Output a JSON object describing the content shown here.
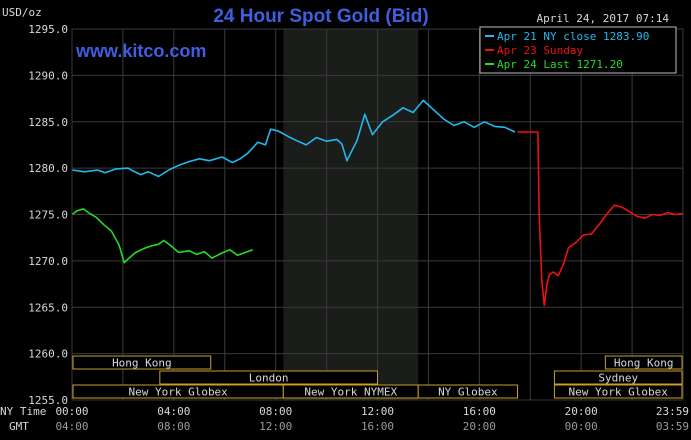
{
  "title": "24 Hour Spot Gold (Bid)",
  "units": "USD/oz",
  "timestamp": "April 24, 2017 07:14",
  "watermark": "www.kitco.com",
  "colors": {
    "background": "#000000",
    "plot": "#000000",
    "shade": "#1a1d1a",
    "grid": "#3a3a3a",
    "axis_text": "#d8d8d8",
    "title": "#3f5fe0",
    "blue": "#22b8ee",
    "red": "#ee1111",
    "green": "#22dd22",
    "session_border": "#c8a028",
    "session_text": "#d8d8d8"
  },
  "legend": [
    {
      "text": "Apr 21 NY close 1283.90",
      "color": "blue"
    },
    {
      "text": "Apr 23 Sunday",
      "color": "red"
    },
    {
      "text": "Apr 24 Last 1271.20",
      "color": "green"
    }
  ],
  "time_labels": {
    "ny_time_label": "NY Time",
    "gmt_label": "GMT",
    "ny_times": [
      "00:00",
      "04:00",
      "08:00",
      "12:00",
      "16:00",
      "20:00",
      "23:59"
    ],
    "gmt_times": [
      "04:00",
      "08:00",
      "12:00",
      "16:00",
      "20:00",
      "00:00",
      "03:59"
    ]
  },
  "sessions": {
    "row1": [
      {
        "label": "Hong Kong",
        "start": 0,
        "end": 5.45
      },
      {
        "label": "Hong Kong",
        "start": 20.95,
        "end": 23.98
      }
    ],
    "row2": [
      {
        "label": "London",
        "start": 3.45,
        "end": 12.0
      },
      {
        "label": "Sydney",
        "start": 18.95,
        "end": 23.98
      }
    ],
    "row3": [
      {
        "label": "New York Globex",
        "start": 0,
        "end": 8.3
      },
      {
        "label": "New York NYMEX",
        "start": 8.3,
        "end": 13.6
      },
      {
        "label": "NY Globex",
        "start": 13.6,
        "end": 17.5
      },
      {
        "label": "New York Globex",
        "start": 18.95,
        "end": 23.98
      }
    ]
  },
  "chart_data": {
    "type": "line",
    "title": "24 Hour Spot Gold (Bid)",
    "ylabel": "USD/oz",
    "xlabel": "NY Time",
    "xlim": [
      0,
      24
    ],
    "ylim": [
      1255,
      1295
    ],
    "y_ticks": [
      "1295.0",
      "1290.0",
      "1285.0",
      "1280.0",
      "1275.0",
      "1270.0",
      "1265.0",
      "1260.0",
      "1255.0"
    ],
    "grid": true,
    "legend_position": "top-right",
    "shaded_range": [
      8.3,
      13.6
    ],
    "series": [
      {
        "name": "Apr 21 NY close 1283.90",
        "color": "blue",
        "x": [
          0,
          0.5,
          1,
          1.3,
          1.7,
          2.2,
          2.4,
          2.7,
          3.0,
          3.4,
          3.8,
          4.2,
          4.6,
          5.0,
          5.4,
          5.9,
          6.3,
          6.6,
          6.9,
          7.3,
          7.6,
          7.8,
          8.1,
          8.5,
          8.8,
          9.2,
          9.6,
          10.0,
          10.4,
          10.6,
          10.8,
          11.0,
          11.2,
          11.5,
          11.8,
          12.2,
          12.6,
          13.0,
          13.4,
          13.8,
          14.2,
          14.6,
          15.0,
          15.4,
          15.8,
          16.2,
          16.6,
          17.0,
          17.4
        ],
        "y": [
          1279.8,
          1279.6,
          1279.8,
          1279.5,
          1279.9,
          1280.0,
          1279.7,
          1279.3,
          1279.6,
          1279.1,
          1279.8,
          1280.3,
          1280.7,
          1281.0,
          1280.8,
          1281.2,
          1280.6,
          1281.0,
          1281.6,
          1282.8,
          1282.5,
          1284.2,
          1284.0,
          1283.4,
          1283.0,
          1282.5,
          1283.3,
          1282.9,
          1283.1,
          1282.6,
          1280.8,
          1281.9,
          1283.0,
          1285.8,
          1283.6,
          1285.0,
          1285.7,
          1286.5,
          1286.0,
          1287.3,
          1286.3,
          1285.3,
          1284.6,
          1285.0,
          1284.4,
          1285.0,
          1284.5,
          1284.4,
          1283.9
        ]
      },
      {
        "name": "Apr 23 Sunday",
        "color": "red",
        "x": [
          17.5,
          18.3,
          18.35,
          18.45,
          18.55,
          18.65,
          18.75,
          18.9,
          19.1,
          19.3,
          19.5,
          19.8,
          20.1,
          20.4,
          20.7,
          21.0,
          21.3,
          21.6,
          21.9,
          22.2,
          22.5,
          22.8,
          23.1,
          23.4,
          23.7,
          23.98
        ],
        "y": [
          1283.9,
          1283.9,
          1275.0,
          1268.0,
          1265.2,
          1267.4,
          1268.5,
          1268.8,
          1268.4,
          1269.6,
          1271.4,
          1272.0,
          1272.8,
          1272.9,
          1273.9,
          1275.0,
          1276.0,
          1275.8,
          1275.3,
          1274.8,
          1274.6,
          1275.0,
          1274.9,
          1275.2,
          1275.0,
          1275.1
        ]
      },
      {
        "name": "Apr 24 Last 1271.20",
        "color": "green",
        "x": [
          0,
          0.2,
          0.45,
          0.7,
          0.95,
          1.25,
          1.55,
          1.85,
          2.05,
          2.2,
          2.5,
          2.8,
          3.1,
          3.4,
          3.6,
          3.85,
          4.2,
          4.6,
          4.9,
          5.2,
          5.5,
          5.85,
          6.2,
          6.5,
          6.8,
          7.1
        ],
        "y": [
          1275.0,
          1275.4,
          1275.6,
          1275.1,
          1274.7,
          1273.9,
          1273.2,
          1271.7,
          1269.8,
          1270.2,
          1270.9,
          1271.3,
          1271.6,
          1271.8,
          1272.2,
          1271.7,
          1270.9,
          1271.1,
          1270.7,
          1271.0,
          1270.3,
          1270.8,
          1271.2,
          1270.6,
          1270.9,
          1271.2
        ]
      }
    ]
  }
}
